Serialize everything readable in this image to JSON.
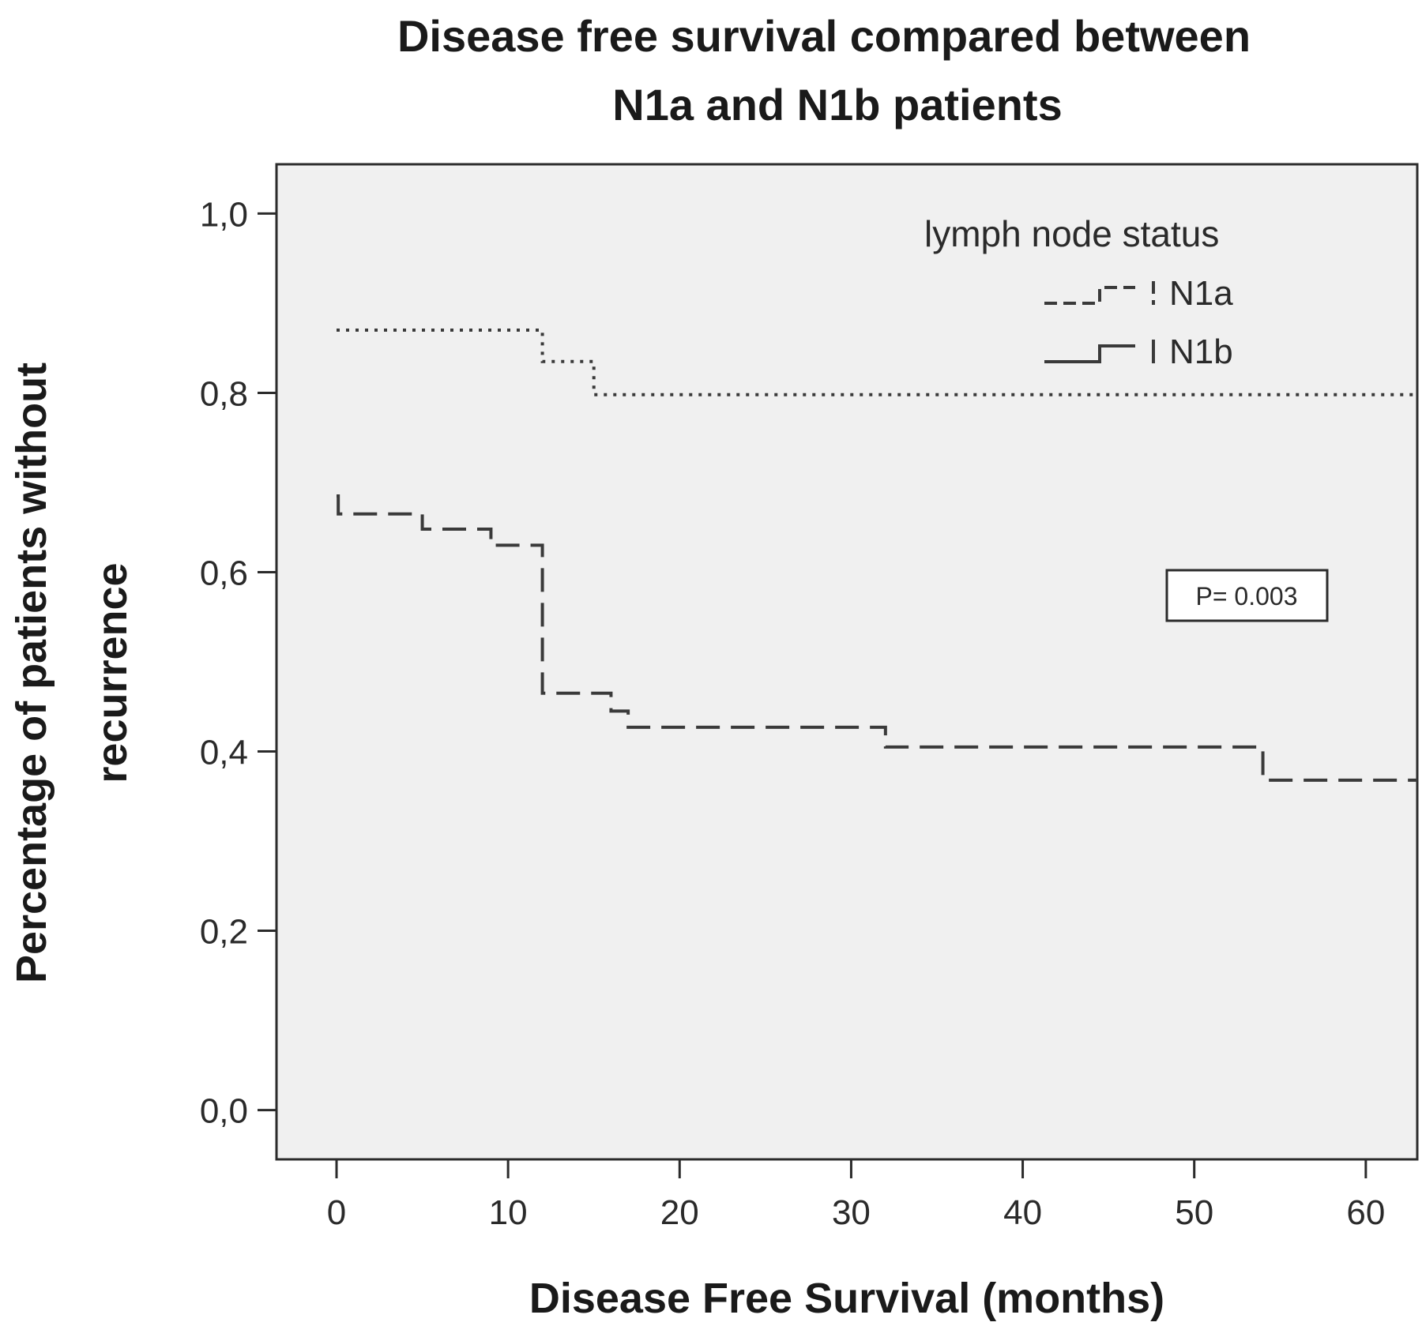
{
  "chart_data": {
    "type": "line",
    "title_lines": [
      "Disease free survival compared between",
      "N1a and N1b patients"
    ],
    "xlabel": "Disease Free Survival (months)",
    "ylabel_lines": [
      "Percentage of patients without",
      "recurrence"
    ],
    "xlim": [
      -3.5,
      63
    ],
    "ylim": [
      -0.055,
      1.055
    ],
    "xticks": [
      0,
      10,
      20,
      30,
      40,
      50,
      60
    ],
    "xtick_labels": [
      "0",
      "10",
      "20",
      "30",
      "40",
      "50",
      "60"
    ],
    "yticks": [
      0,
      0.2,
      0.4,
      0.6,
      0.8,
      1.0
    ],
    "ytick_labels": [
      "0,0",
      "0,2",
      "0,4",
      "0,6",
      "0,8",
      "1,0"
    ],
    "grid": false,
    "step": true,
    "legend": {
      "title": "lymph node status",
      "position": "top-right"
    },
    "annotation": "P= 0.003",
    "series": [
      {
        "name": "N1a",
        "line_style": "dotted",
        "x": [
          0,
          12,
          15,
          63
        ],
        "y": [
          0.87,
          0.835,
          0.798,
          0.798
        ]
      },
      {
        "name": "N1b",
        "line_style": "dashed",
        "x": [
          0,
          0.1,
          5,
          9,
          12,
          16,
          17,
          32,
          54,
          63
        ],
        "y": [
          0.685,
          0.665,
          0.648,
          0.63,
          0.465,
          0.445,
          0.427,
          0.405,
          0.368,
          0.368
        ]
      }
    ],
    "colors": {
      "plot_background": "#f0f0f0",
      "frame": "#2b2b2b",
      "lines": "#3a3a3a"
    }
  }
}
